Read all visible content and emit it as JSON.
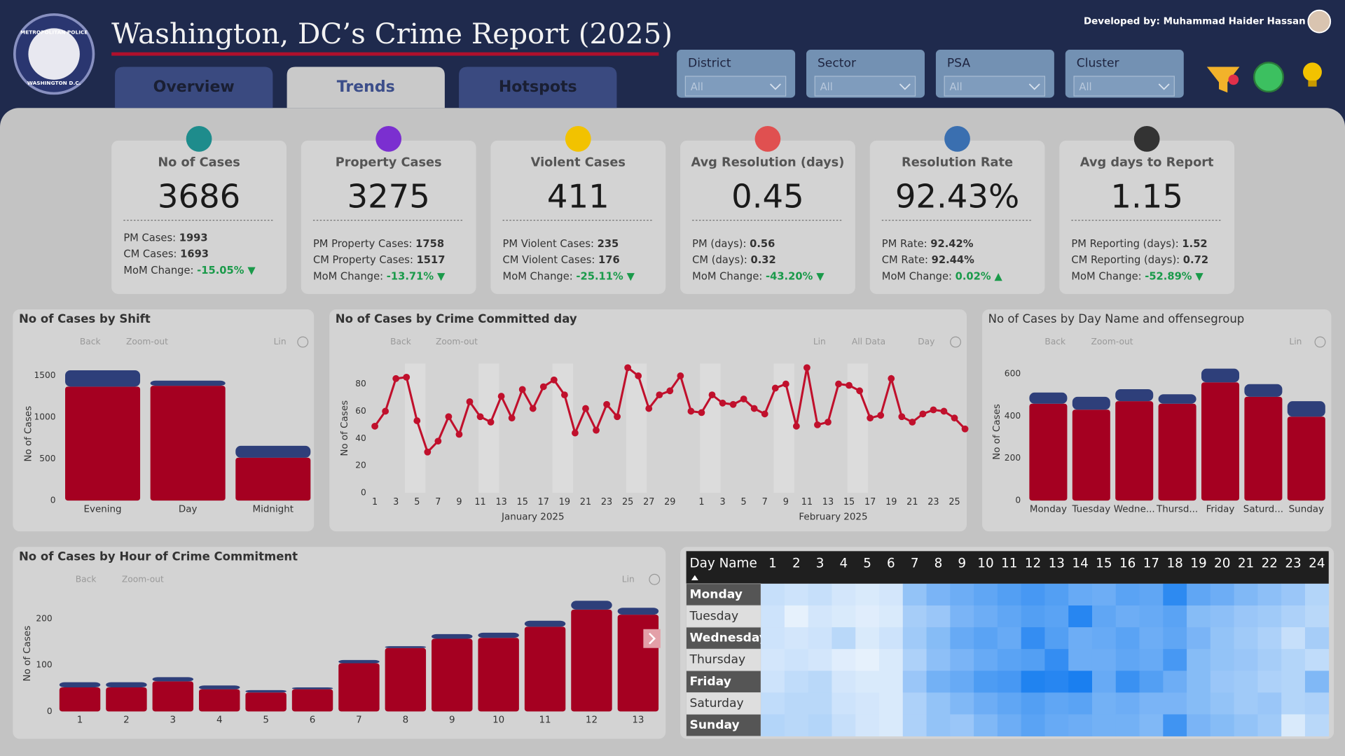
{
  "header": {
    "title": "Washington, DC’s Crime Report (2025)",
    "developer": "Developed by: Muhammad Haider Hassan",
    "logo_text": [
      "METROPOLITAN POLICE",
      "WASHINGTON D.C."
    ]
  },
  "tabs": [
    {
      "label": "Overview"
    },
    {
      "label": "Trends",
      "active": true
    },
    {
      "label": "Hotspots"
    }
  ],
  "filters": [
    {
      "label": "District",
      "value": "All"
    },
    {
      "label": "Sector",
      "value": "All"
    },
    {
      "label": "PSA",
      "value": "All"
    },
    {
      "label": "Cluster",
      "value": "All"
    }
  ],
  "kpis": [
    {
      "title": "No of Cases",
      "value": "3686",
      "icon_color": "#1e8c8c",
      "lines": [
        {
          "label": "PM Cases: ",
          "value": "1993"
        },
        {
          "label": "CM Cases: ",
          "value": "1693"
        }
      ],
      "mom_label": "MoM Change: ",
      "mom": "-15.05%",
      "trend": "▼"
    },
    {
      "title": "Property Cases",
      "value": "3275",
      "icon_color": "#7b2fd0",
      "lines": [
        {
          "label": "PM Property Cases: ",
          "value": "1758"
        },
        {
          "label": "CM Property Cases: ",
          "value": "1517"
        }
      ],
      "mom_label": "MoM Change: ",
      "mom": "-13.71%",
      "trend": "▼"
    },
    {
      "title": "Violent Cases",
      "value": "411",
      "icon_color": "#f2c200",
      "lines": [
        {
          "label": "PM Violent Cases: ",
          "value": "235"
        },
        {
          "label": "CM Violent Cases: ",
          "value": "176"
        }
      ],
      "mom_label": "MoM Change: ",
      "mom": "-25.11%",
      "trend": "▼"
    },
    {
      "title": "Avg Resolution (days)",
      "value": "0.45",
      "icon_color": "#e05050",
      "lines": [
        {
          "label": "PM (days): ",
          "value": "0.56"
        },
        {
          "label": "CM (days): ",
          "value": "0.32"
        }
      ],
      "mom_label": "MoM Change: ",
      "mom": "-43.20%",
      "trend": "▼"
    },
    {
      "title": "Resolution Rate",
      "value": "92.43%",
      "icon_color": "#3a6fb0",
      "lines": [
        {
          "label": "PM Rate: ",
          "value": "92.42%"
        },
        {
          "label": "CM Rate: ",
          "value": "92.44%"
        }
      ],
      "mom_label": "MoM Change: ",
      "mom": "0.02%",
      "trend": "▲"
    },
    {
      "title": "Avg days to Report",
      "value": "1.15",
      "icon_color": "#333333",
      "lines": [
        {
          "label": "PM Reporting (days): ",
          "value": "1.52"
        },
        {
          "label": "CM Reporting (days): ",
          "value": "0.72"
        }
      ],
      "mom_label": "MoM Change: ",
      "mom": "-52.89%",
      "trend": "▼"
    }
  ],
  "charts": {
    "shift": {
      "type": "bar",
      "title": "No of Cases by Shift",
      "y_label": "No of Cases",
      "toolbar": [
        "Back",
        "Zoom-out",
        "Lin"
      ],
      "categories": [
        "Evening",
        "Day",
        "Midnight"
      ],
      "series": [
        {
          "color": "#a50021",
          "values": [
            1366,
            1376,
            514
          ]
        },
        {
          "color": "#2e3f7a",
          "values": [
            196,
            62,
            143
          ]
        }
      ],
      "ylim": [
        0,
        1600
      ],
      "yticks": [
        0,
        500,
        1000,
        1500
      ]
    },
    "daily": {
      "type": "line",
      "title": "No of Cases by Crime Committed day",
      "y_label": "No of Cases",
      "toolbar": [
        "Back",
        "Zoom-out",
        "Lin",
        "All Data",
        "Day"
      ],
      "color": "#c0102c",
      "ylim": [
        0,
        95
      ],
      "yticks": [
        0,
        20,
        40,
        60,
        80
      ],
      "groups": [
        {
          "label": "January 2025",
          "categories": [
            "1",
            null,
            "3",
            null,
            "5",
            null,
            "7",
            null,
            "9",
            null,
            "11",
            null,
            "13",
            null,
            "15",
            null,
            "17",
            null,
            "19",
            null,
            "21",
            null,
            "23",
            null,
            "25",
            null,
            "27",
            null,
            "29",
            null,
            null
          ],
          "values": [
            49,
            60,
            84,
            85,
            53,
            30,
            38,
            56,
            43,
            67,
            56,
            52,
            71,
            55,
            76,
            62,
            78,
            83,
            72,
            44,
            62,
            46,
            65,
            56,
            92,
            86,
            62,
            72,
            75,
            86,
            60
          ]
        },
        {
          "label": "February 2025",
          "categories": [
            "1",
            null,
            "3",
            null,
            "5",
            null,
            "7",
            null,
            "9",
            null,
            "11",
            null,
            "13",
            null,
            "15",
            null,
            "17",
            null,
            "19",
            null,
            "21",
            null,
            "23",
            null,
            "25",
            null
          ],
          "values": [
            59,
            72,
            66,
            65,
            69,
            62,
            58,
            77,
            80,
            49,
            92,
            50,
            52,
            80,
            79,
            75,
            55,
            57,
            84,
            56,
            52,
            58,
            61,
            60,
            55,
            47
          ]
        }
      ]
    },
    "dayname": {
      "type": "bar",
      "title": "No of Cases by Day Name and offensegroup",
      "y_label": "No of Cases",
      "toolbar": [
        "Back",
        "Zoom-out",
        "Lin"
      ],
      "categories": [
        "Monday",
        "Tuesday",
        "Wedne...",
        "Thursd...",
        "Friday",
        "Saturd...",
        "Sunday"
      ],
      "series": [
        {
          "color": "#a50021",
          "values": [
            458,
            430,
            470,
            458,
            559,
            491,
            397
          ]
        },
        {
          "color": "#2e3f7a",
          "values": [
            53,
            61,
            57,
            45,
            65,
            60,
            73
          ]
        }
      ],
      "ylim": [
        0,
        650
      ],
      "yticks": [
        0,
        200,
        400,
        600
      ]
    },
    "hour": {
      "type": "bar",
      "title": "No of Cases by Hour of Crime Commitment",
      "y_label": "No of Cases",
      "toolbar": [
        "Back",
        "Zoom-out",
        "Lin"
      ],
      "categories": [
        "1",
        "2",
        "3",
        "4",
        "5",
        "6",
        "7",
        "8",
        "9",
        "10",
        "11",
        "12",
        "13"
      ],
      "series": [
        {
          "color": "#a50021",
          "values": [
            52,
            52,
            65,
            48,
            41,
            48,
            104,
            137,
            157,
            159,
            183,
            220,
            209
          ]
        },
        {
          "color": "#2e3f7a",
          "values": [
            11,
            11,
            9,
            8,
            5,
            4,
            7,
            4,
            10,
            11,
            13,
            19,
            15
          ]
        }
      ],
      "ylim": [
        0,
        250
      ],
      "yticks": [
        0,
        100,
        200
      ]
    }
  },
  "heatmap": {
    "header": "Day Name",
    "columns": [
      "1",
      "2",
      "3",
      "4",
      "5",
      "6",
      "7",
      "8",
      "9",
      "10",
      "11",
      "12",
      "13",
      "14",
      "15",
      "16",
      "17",
      "18",
      "19",
      "20",
      "21",
      "22",
      "23",
      "24"
    ],
    "colors": [
      "#e6f1fc",
      "#1a7ff0"
    ],
    "rows": [
      {
        "label": "Monday",
        "values": [
          10,
          9,
          10,
          8,
          7,
          8,
          18,
          22,
          24,
          26,
          28,
          30,
          28,
          25,
          24,
          27,
          26,
          34,
          26,
          24,
          21,
          19,
          17,
          13
        ]
      },
      {
        "label": "Tuesday",
        "values": [
          9,
          5,
          8,
          7,
          6,
          7,
          15,
          17,
          22,
          24,
          26,
          28,
          27,
          35,
          26,
          24,
          25,
          27,
          20,
          19,
          17,
          16,
          14,
          12
        ]
      },
      {
        "label": "Wednesday",
        "values": [
          9,
          8,
          9,
          12,
          7,
          9,
          16,
          20,
          25,
          27,
          25,
          33,
          28,
          24,
          25,
          27,
          24,
          26,
          22,
          18,
          16,
          14,
          10,
          15
        ]
      },
      {
        "label": "Thursday",
        "values": [
          8,
          9,
          8,
          6,
          5,
          7,
          14,
          19,
          22,
          25,
          27,
          28,
          33,
          24,
          24,
          26,
          25,
          30,
          20,
          18,
          17,
          15,
          13,
          11
        ]
      },
      {
        "label": "Friday",
        "values": [
          9,
          11,
          12,
          8,
          7,
          7,
          17,
          23,
          25,
          29,
          30,
          36,
          35,
          37,
          25,
          32,
          28,
          24,
          20,
          17,
          16,
          14,
          13,
          21
        ]
      },
      {
        "label": "Saturday",
        "values": [
          11,
          12,
          12,
          9,
          8,
          7,
          14,
          18,
          21,
          24,
          26,
          28,
          26,
          27,
          23,
          24,
          22,
          22,
          20,
          18,
          16,
          17,
          13,
          14
        ]
      },
      {
        "label": "Sunday",
        "values": [
          13,
          12,
          13,
          10,
          8,
          7,
          14,
          18,
          17,
          21,
          24,
          27,
          25,
          24,
          23,
          23,
          21,
          31,
          22,
          20,
          18,
          16,
          7,
          12
        ]
      }
    ]
  }
}
